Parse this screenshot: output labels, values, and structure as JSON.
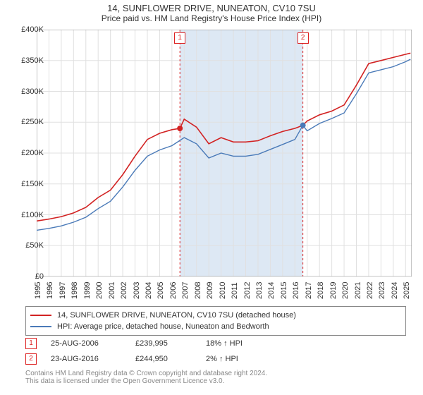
{
  "title": "14, SUNFLOWER DRIVE, NUNEATON, CV10 7SU",
  "subtitle": "Price paid vs. HM Land Registry's House Price Index (HPI)",
  "chart": {
    "type": "line",
    "background_color": "#ffffff",
    "grid_color": "#e0e0e0",
    "shaded_band_color": "#dde8f4",
    "shaded_band_x": [
      2006.65,
      2016.65
    ],
    "sale_vline_color": "#d22",
    "sale_vline_dash": "3,3",
    "xlim": [
      1995,
      2025.5
    ],
    "ylim": [
      0,
      400000
    ],
    "ytick_step": 50000,
    "yticks": [
      "£0",
      "£50K",
      "£100K",
      "£150K",
      "£200K",
      "£250K",
      "£300K",
      "£350K",
      "£400K"
    ],
    "xticks": [
      1995,
      1996,
      1997,
      1998,
      1999,
      2000,
      2001,
      2002,
      2003,
      2004,
      2005,
      2006,
      2007,
      2008,
      2009,
      2010,
      2011,
      2012,
      2013,
      2014,
      2015,
      2016,
      2017,
      2018,
      2019,
      2020,
      2021,
      2022,
      2023,
      2024,
      2025
    ],
    "label_fontsize": 11,
    "series": [
      {
        "name": "price_paid",
        "label": "14, SUNFLOWER DRIVE, NUNEATON, CV10 7SU (detached house)",
        "color": "#d22222",
        "width": 1.6,
        "x": [
          1995,
          1996,
          1997,
          1998,
          1999,
          2000,
          2001,
          2002,
          2003,
          2004,
          2005,
          2006,
          2006.65,
          2007,
          2008,
          2009,
          2010,
          2011,
          2012,
          2013,
          2014,
          2015,
          2016,
          2016.65,
          2017,
          2018,
          2019,
          2020,
          2021,
          2022,
          2023,
          2024,
          2025,
          2025.4
        ],
        "y": [
          90000,
          93000,
          97000,
          103000,
          112000,
          128000,
          140000,
          165000,
          195000,
          222000,
          232000,
          238000,
          239995,
          255000,
          242000,
          215000,
          225000,
          218000,
          218000,
          220000,
          228000,
          235000,
          240000,
          244950,
          252000,
          262000,
          268000,
          278000,
          310000,
          345000,
          350000,
          355000,
          360000,
          362000
        ]
      },
      {
        "name": "hpi",
        "label": "HPI: Average price, detached house, Nuneaton and Bedworth",
        "color": "#4a7ab8",
        "width": 1.4,
        "x": [
          1995,
          1996,
          1997,
          1998,
          1999,
          2000,
          2001,
          2002,
          2003,
          2004,
          2005,
          2006,
          2007,
          2008,
          2009,
          2010,
          2011,
          2012,
          2013,
          2014,
          2015,
          2016,
          2016.65,
          2017,
          2018,
          2019,
          2020,
          2021,
          2022,
          2023,
          2024,
          2025,
          2025.4
        ],
        "y": [
          75000,
          78000,
          82000,
          88000,
          96000,
          110000,
          122000,
          145000,
          172000,
          195000,
          205000,
          212000,
          225000,
          215000,
          192000,
          200000,
          195000,
          195000,
          198000,
          206000,
          214000,
          222000,
          244950,
          236000,
          248000,
          256000,
          265000,
          296000,
          330000,
          335000,
          340000,
          348000,
          352000
        ]
      }
    ],
    "sale_points": [
      {
        "n": "1",
        "x": 2006.65,
        "y": 239995,
        "color": "#d22222"
      },
      {
        "n": "2",
        "x": 2016.65,
        "y": 244950,
        "color": "#4a7ab8"
      }
    ]
  },
  "legend": {
    "items": [
      {
        "color": "#d22222",
        "label": "14, SUNFLOWER DRIVE, NUNEATON, CV10 7SU (detached house)"
      },
      {
        "color": "#4a7ab8",
        "label": "HPI: Average price, detached house, Nuneaton and Bedworth"
      }
    ]
  },
  "sales": [
    {
      "n": "1",
      "date": "25-AUG-2006",
      "price": "£239,995",
      "diff": "18% ↑ HPI"
    },
    {
      "n": "2",
      "date": "23-AUG-2016",
      "price": "£244,950",
      "diff": "2% ↑ HPI"
    }
  ],
  "footer1": "Contains HM Land Registry data © Crown copyright and database right 2024.",
  "footer2": "This data is licensed under the Open Government Licence v3.0."
}
